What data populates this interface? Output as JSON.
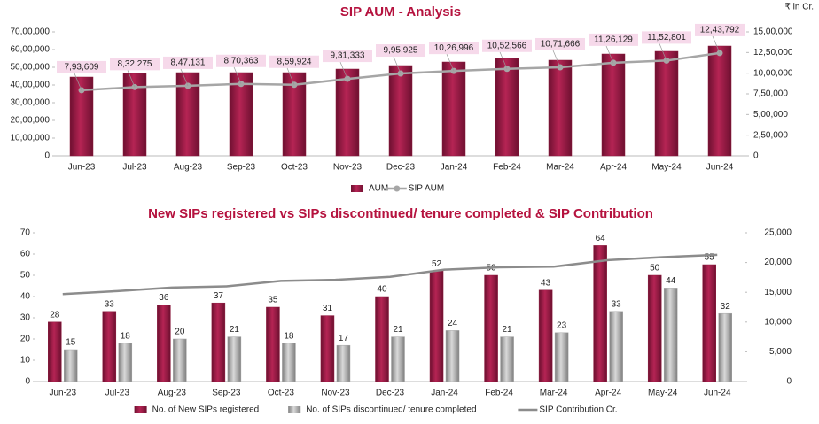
{
  "chart_data": [
    {
      "type": "combo",
      "title": "SIP AUM - Analysis",
      "annotation": "₹ in Cr.",
      "categories": [
        "Jun-23",
        "Jul-23",
        "Aug-23",
        "Sep-23",
        "Oct-23",
        "Nov-23",
        "Dec-23",
        "Jan-24",
        "Feb-24",
        "Mar-24",
        "Apr-24",
        "May-24",
        "Jun-24"
      ],
      "ylim": [
        0,
        7000000
      ],
      "yticks": [
        0,
        {
          "value": 1000000,
          "label": "10,00,000"
        },
        {
          "value": 2000000,
          "label": "20,00,000"
        },
        {
          "value": 3000000,
          "label": "30,00,000"
        },
        {
          "value": 4000000,
          "label": "40,00,000"
        },
        {
          "value": 5000000,
          "label": "50,00,000"
        },
        {
          "value": 6000000,
          "label": "60,00,000"
        },
        {
          "value": 7000000,
          "label": "70,00,000"
        }
      ],
      "y2lim": [
        0,
        1500000
      ],
      "y2ticks": [
        0,
        {
          "value": 250000,
          "label": "2,50,000"
        },
        {
          "value": 500000,
          "label": "5,00,000"
        },
        {
          "value": 750000,
          "label": "7,50,000"
        },
        {
          "value": 1000000,
          "label": "10,00,000"
        },
        {
          "value": 1250000,
          "label": "12,50,000"
        },
        {
          "value": 1500000,
          "label": "15,00,000"
        }
      ],
      "legend": "bottom",
      "series": [
        {
          "name": "AUM",
          "type": "bar",
          "color": "#8e1b3f",
          "values": [
            4450000,
            4650000,
            4700000,
            4700000,
            4700000,
            4900000,
            5100000,
            5300000,
            5500000,
            5400000,
            5750000,
            5900000,
            6200000
          ]
        },
        {
          "name": "SIP AUM",
          "type": "line",
          "axis": "y2",
          "color": "#a6a6a6",
          "values": [
            793609,
            832275,
            847131,
            870363,
            859924,
            931333,
            995925,
            1026996,
            1052566,
            1071666,
            1126129,
            1152801,
            1243792
          ],
          "value_labels": [
            "7,93,609",
            "8,32,275",
            "8,47,131",
            "8,70,363",
            "8,59,924",
            "9,31,333",
            "9,95,925",
            "10,26,996",
            "10,52,566",
            "10,71,666",
            "11,26,129",
            "11,52,801",
            "12,43,792"
          ]
        }
      ]
    },
    {
      "type": "combo",
      "title": "New SIPs registered vs SIPs discontinued/ tenure completed & SIP Contribution",
      "categories": [
        "Jun-23",
        "Jul-23",
        "Aug-23",
        "Sep-23",
        "Oct-23",
        "Nov-23",
        "Dec-23",
        "Jan-24",
        "Feb-24",
        "Mar-24",
        "Apr-24",
        "May-24",
        "Jun-24"
      ],
      "ylim": [
        0,
        70
      ],
      "yticks": [
        0,
        10,
        20,
        30,
        40,
        50,
        60,
        70
      ],
      "y2lim": [
        0,
        25000
      ],
      "y2ticks": [
        0,
        {
          "value": 5000,
          "label": "5,000"
        },
        {
          "value": 10000,
          "label": "10,000"
        },
        {
          "value": 15000,
          "label": "15,000"
        },
        {
          "value": 20000,
          "label": "20,000"
        },
        {
          "value": 25000,
          "label": "25,000"
        }
      ],
      "legend": "bottom",
      "series": [
        {
          "name": "No. of New SIPs registered",
          "type": "bar",
          "color": "#8e1b3f",
          "values": [
            28,
            33,
            36,
            37,
            35,
            31,
            40,
            52,
            50,
            43,
            64,
            50,
            55
          ]
        },
        {
          "name": "No. of SIPs discontinued/ tenure completed",
          "type": "bar",
          "color": "#a6a6a6",
          "values": [
            15,
            18,
            20,
            21,
            18,
            17,
            21,
            24,
            21,
            23,
            33,
            44,
            32
          ]
        },
        {
          "name": "SIP Contribution Cr.",
          "type": "line",
          "axis": "y2",
          "color": "#8c8c8c",
          "values": [
            14700,
            15200,
            15800,
            16000,
            16900,
            17100,
            17600,
            18800,
            19200,
            19300,
            20400,
            20900,
            21300
          ]
        }
      ]
    }
  ]
}
